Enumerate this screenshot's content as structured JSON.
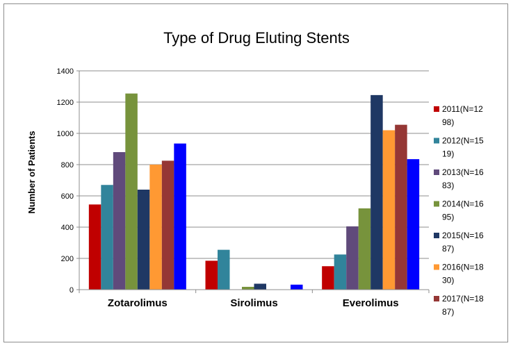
{
  "chart_data": {
    "type": "bar",
    "title": "Type of Drug Eluting Stents",
    "xlabel": "",
    "ylabel": "Number of Patients",
    "ylim": [
      0,
      1400
    ],
    "yticks": [
      0,
      200,
      400,
      600,
      800,
      1000,
      1200,
      1400
    ],
    "yticks_labels": [
      "0",
      "200",
      "400",
      "600",
      "800",
      "1000",
      "1200",
      "1400"
    ],
    "grid": true,
    "legend_position": "right",
    "categories": [
      "Zotarolimus",
      "Sirolimus",
      "Everolimus"
    ],
    "series": [
      {
        "name": "2011(N=1298)",
        "legend_lines": [
          "2011(N=12",
          "98)"
        ],
        "color": "#c00000",
        "values": [
          545,
          185,
          150
        ]
      },
      {
        "name": "2012(N=1519)",
        "legend_lines": [
          "2012(N=15",
          "19)"
        ],
        "color": "#31849b",
        "values": [
          670,
          255,
          225
        ]
      },
      {
        "name": "2013(N=1683)",
        "legend_lines": [
          "2013(N=16",
          "83)"
        ],
        "color": "#604a7b",
        "values": [
          880,
          0,
          405
        ]
      },
      {
        "name": "2014(N=1695)",
        "legend_lines": [
          "2014(N=16",
          "95)"
        ],
        "color": "#77933c",
        "values": [
          1255,
          18,
          520
        ]
      },
      {
        "name": "2015(N=1687)",
        "legend_lines": [
          "2015(N=16",
          "87)"
        ],
        "color": "#1f3864",
        "values": [
          640,
          38,
          1245
        ]
      },
      {
        "name": "2016(N=1830)",
        "legend_lines": [
          "2016(N=18",
          "30)"
        ],
        "color": "#ff9933",
        "values": [
          800,
          0,
          1020
        ]
      },
      {
        "name": "2017(N=1887)",
        "legend_lines": [
          "2017(N=18",
          "87)"
        ],
        "color": "#953735",
        "values": [
          825,
          0,
          1055
        ]
      },
      {
        "name": "",
        "legend_lines": [],
        "color": "#0000ff",
        "values": [
          935,
          32,
          835
        ]
      }
    ]
  }
}
